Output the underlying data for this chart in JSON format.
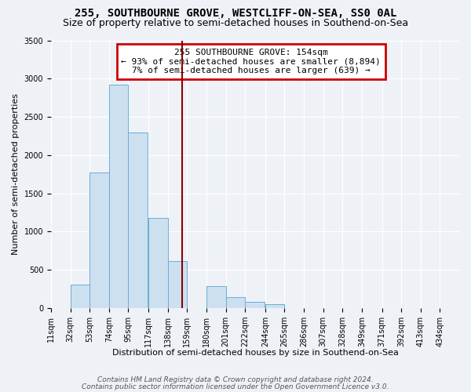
{
  "title": "255, SOUTHBOURNE GROVE, WESTCLIFF-ON-SEA, SS0 0AL",
  "subtitle": "Size of property relative to semi-detached houses in Southend-on-Sea",
  "xlabel": "Distribution of semi-detached houses by size in Southend-on-Sea",
  "ylabel": "Number of semi-detached properties",
  "footnote1": "Contains HM Land Registry data © Crown copyright and database right 2024.",
  "footnote2": "Contains public sector information licensed under the Open Government Licence v3.0.",
  "bin_labels": [
    "11sqm",
    "32sqm",
    "53sqm",
    "74sqm",
    "95sqm",
    "117sqm",
    "138sqm",
    "159sqm",
    "180sqm",
    "201sqm",
    "222sqm",
    "244sqm",
    "265sqm",
    "286sqm",
    "307sqm",
    "328sqm",
    "349sqm",
    "371sqm",
    "392sqm",
    "413sqm",
    "434sqm"
  ],
  "bin_left_edges": [
    11,
    32,
    53,
    74,
    95,
    117,
    138,
    159,
    180,
    201,
    222,
    244,
    265,
    286,
    307,
    328,
    349,
    371,
    392,
    413
  ],
  "bar_values": [
    0,
    310,
    1770,
    2920,
    2300,
    1175,
    610,
    0,
    290,
    145,
    80,
    55,
    0,
    0,
    0,
    0,
    0,
    0,
    0,
    0
  ],
  "bar_color": "#cde0f0",
  "bar_edge_color": "#6aaed6",
  "property_size": 154,
  "vline_color": "#8b0000",
  "annotation_line1": "255 SOUTHBOURNE GROVE: 154sqm",
  "annotation_line2": "← 93% of semi-detached houses are smaller (8,894)",
  "annotation_line3": "7% of semi-detached houses are larger (639) →",
  "annotation_box_edgecolor": "#cc0000",
  "ylim": [
    0,
    3500
  ],
  "yticks": [
    0,
    500,
    1000,
    1500,
    2000,
    2500,
    3000,
    3500
  ],
  "background_color": "#eef2f7",
  "grid_color": "#ffffff",
  "title_fontsize": 10,
  "subtitle_fontsize": 9,
  "axis_label_fontsize": 8,
  "tick_fontsize": 7,
  "annotation_fontsize": 8,
  "footnote_fontsize": 6.5
}
